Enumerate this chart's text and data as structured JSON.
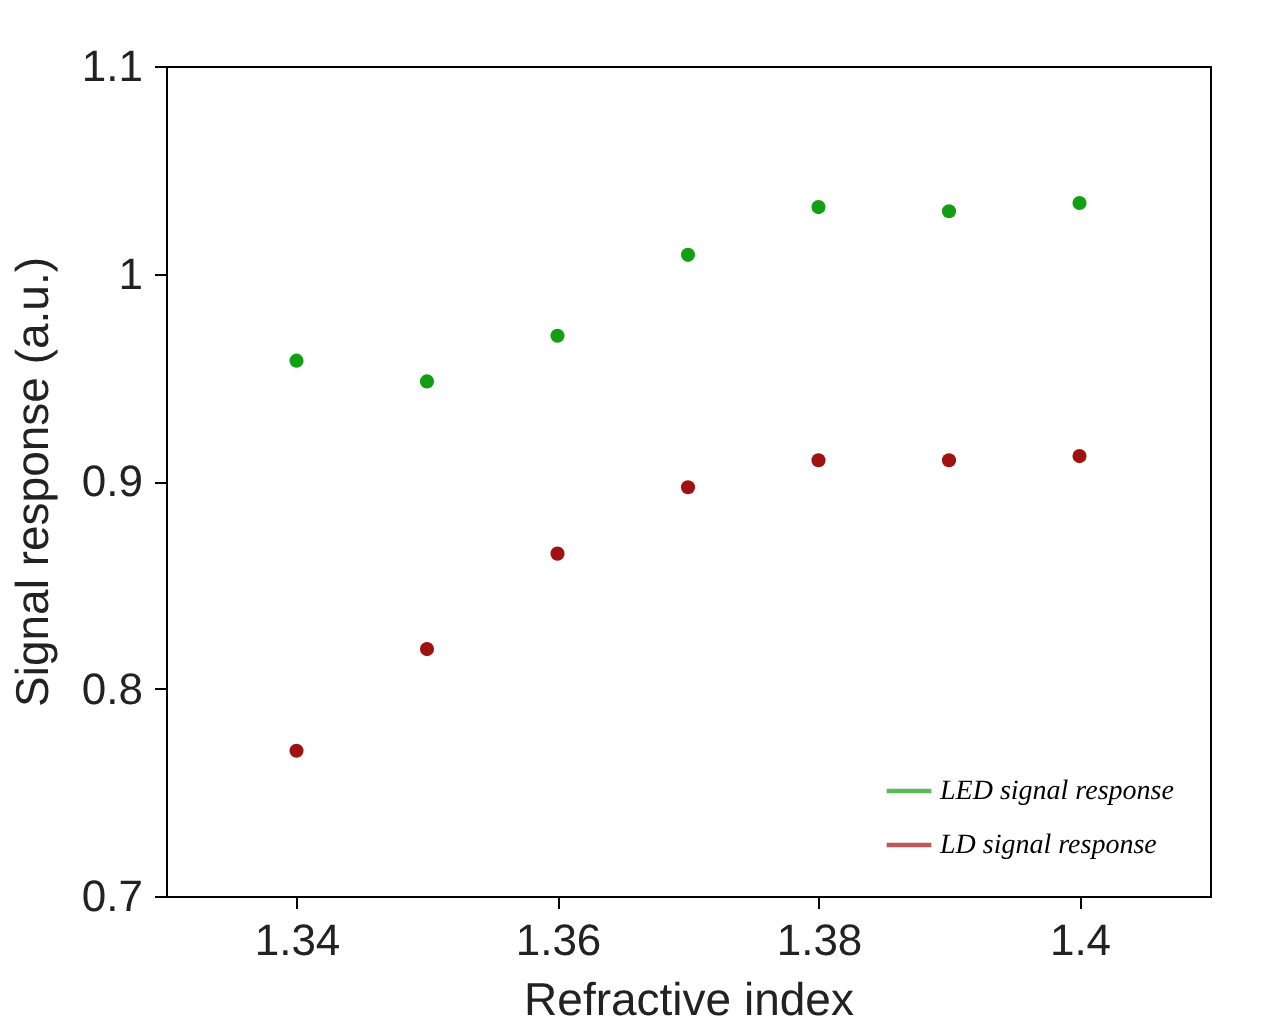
{
  "chart_data": {
    "type": "scatter",
    "xlabel": "Refractive index",
    "ylabel": "Signal response (a.u.)",
    "x": [
      1.34,
      1.35,
      1.36,
      1.37,
      1.38,
      1.39,
      1.4
    ],
    "series": [
      {
        "name": "LED signal response",
        "color": "#12a012",
        "values": [
          0.958,
          0.948,
          0.97,
          1.009,
          1.032,
          1.03,
          1.034
        ]
      },
      {
        "name": "LD signal response",
        "color": "#a01212",
        "values": [
          0.77,
          0.819,
          0.865,
          0.897,
          0.91,
          0.91,
          0.912
        ]
      }
    ],
    "xlim": [
      1.33,
      1.41
    ],
    "xticks": [
      1.34,
      1.36,
      1.38,
      {
        "value": 1.4,
        "label": "1.4"
      }
    ],
    "ylim": [
      0.7,
      1.1
    ],
    "yticks": [
      0.7,
      0.8,
      0.9,
      1,
      1.1
    ],
    "grid": false,
    "legend": "bottom right",
    "marker": "circle"
  }
}
